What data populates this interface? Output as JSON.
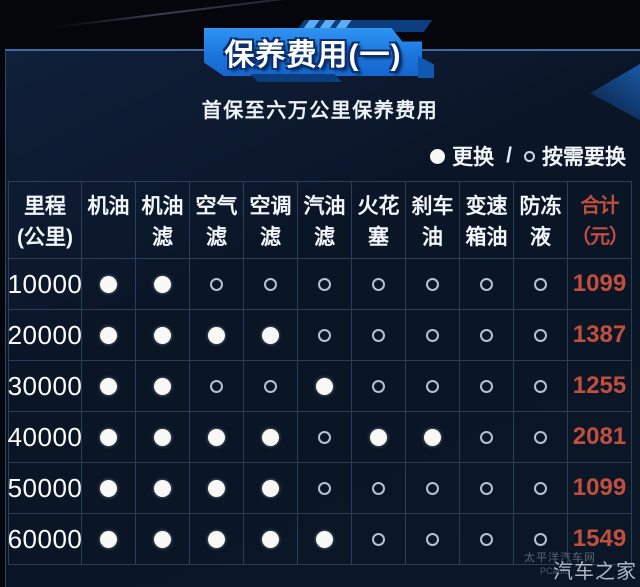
{
  "banner": {
    "title": "保养费用(一)"
  },
  "subtitle": "首保至六万公里保养费用",
  "legend": {
    "filled_label": "更换",
    "separator": "/",
    "empty_label": "按需要换"
  },
  "watermark": {
    "site": "太平洋汽车网",
    "site_small": "PCauto",
    "brand": "汽车之家"
  },
  "colors": {
    "banner_blue": "#1f80e5",
    "banner_dark": "#0b3d7f",
    "accent_red": "#c14f3e",
    "panel_bg": "#0b1727",
    "grid_line": "#2c3f58",
    "filled_circle": "#f8f9f6",
    "empty_circle_stroke": "#b2c2d7"
  },
  "chart_data": {
    "type": "table",
    "title": "保养费用(一)",
    "subtitle": "首保至六万公里保养费用",
    "legend": {
      "filled": "更换",
      "empty": "按需要换"
    },
    "columns": [
      "里程(公里)",
      "机油",
      "机油滤",
      "空气滤",
      "空调滤",
      "汽油滤",
      "火花塞",
      "刹车油",
      "变速箱油",
      "防冻液",
      "合计(元)"
    ],
    "columns_display": [
      [
        "里程",
        "(公里)"
      ],
      [
        "机油",
        ""
      ],
      [
        "机油",
        "滤"
      ],
      [
        "空气",
        "滤"
      ],
      [
        "空调",
        "滤"
      ],
      [
        "汽油",
        "滤"
      ],
      [
        "火花",
        "塞"
      ],
      [
        "刹车",
        "油"
      ],
      [
        "变速",
        "箱油"
      ],
      [
        "防冻",
        "液"
      ],
      [
        "合计",
        "（元）"
      ]
    ],
    "rows": [
      {
        "mileage": "10000",
        "marks": [
          1,
          1,
          0,
          0,
          0,
          0,
          0,
          0,
          0
        ],
        "total": "1099"
      },
      {
        "mileage": "20000",
        "marks": [
          1,
          1,
          1,
          1,
          0,
          0,
          0,
          0,
          0
        ],
        "total": "1387"
      },
      {
        "mileage": "30000",
        "marks": [
          1,
          1,
          0,
          0,
          1,
          0,
          0,
          0,
          0
        ],
        "total": "1255"
      },
      {
        "mileage": "40000",
        "marks": [
          1,
          1,
          1,
          1,
          0,
          1,
          1,
          0,
          0
        ],
        "total": "2081"
      },
      {
        "mileage": "50000",
        "marks": [
          1,
          1,
          1,
          1,
          0,
          0,
          0,
          0,
          0
        ],
        "total": "1099"
      },
      {
        "mileage": "60000",
        "marks": [
          1,
          1,
          1,
          1,
          1,
          0,
          0,
          0,
          0
        ],
        "total": "1549"
      }
    ],
    "mark_meaning": {
      "1": "更换",
      "0": "按需要换"
    }
  }
}
